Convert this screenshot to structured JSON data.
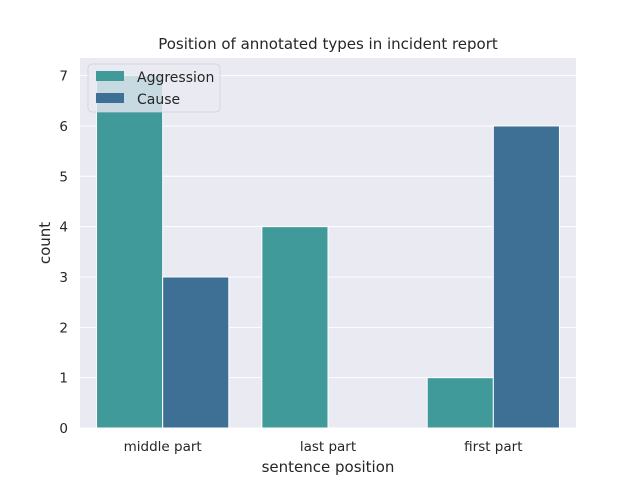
{
  "chart_data": {
    "type": "bar",
    "title": "Position of annotated types in incident report",
    "xlabel": "sentence position",
    "ylabel": "count",
    "categories": [
      "middle part",
      "last part",
      "first part"
    ],
    "series": [
      {
        "name": "Aggression",
        "values": [
          7,
          4,
          1
        ],
        "color": "#409a99"
      },
      {
        "name": "Cause",
        "values": [
          3,
          0,
          6
        ],
        "color": "#3e7096"
      }
    ],
    "ylim": [
      0,
      7.35
    ],
    "yticks": [
      0,
      1,
      2,
      3,
      4,
      5,
      6,
      7
    ],
    "grid": true,
    "legend_position": "top-left",
    "background_color": "#eaeaf2",
    "grid_color": "#ffffff"
  }
}
